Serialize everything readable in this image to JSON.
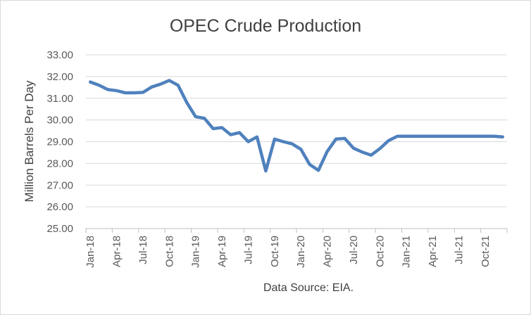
{
  "chart_data": {
    "type": "line",
    "title": "OPEC Crude Production",
    "ylabel": "Million Barrels Per Day",
    "caption": "Data Source: EIA.",
    "ylim": [
      25.0,
      33.0
    ],
    "yticks": [
      "25.00",
      "26.00",
      "27.00",
      "28.00",
      "29.00",
      "30.00",
      "31.00",
      "32.00",
      "33.00"
    ],
    "grid": true,
    "legend": "none",
    "xtick_labels": [
      "Jan-18",
      "Apr-18",
      "Jul-18",
      "Oct-18",
      "Jan-19",
      "Apr-19",
      "Jul-19",
      "Oct-19",
      "Jan-20",
      "Apr-20",
      "Jul-20",
      "Oct-20",
      "Jan-21",
      "Apr-21",
      "Jul-21",
      "Oct-21"
    ],
    "series": [
      {
        "color": "#4f81bd",
        "x": [
          "Jan-18",
          "Feb-18",
          "Mar-18",
          "Apr-18",
          "May-18",
          "Jun-18",
          "Jul-18",
          "Aug-18",
          "Sep-18",
          "Oct-18",
          "Nov-18",
          "Dec-18",
          "Jan-19",
          "Feb-19",
          "Mar-19",
          "Apr-19",
          "May-19",
          "Jun-19",
          "Jul-19",
          "Aug-19",
          "Sep-19",
          "Oct-19",
          "Nov-19",
          "Dec-19",
          "Jan-20",
          "Feb-20",
          "Mar-20",
          "Apr-20",
          "May-20",
          "Jun-20",
          "Jul-20",
          "Aug-20",
          "Sep-20",
          "Oct-20",
          "Nov-20",
          "Dec-20",
          "Jan-21",
          "Feb-21",
          "Mar-21",
          "Apr-21",
          "May-21",
          "Jun-21",
          "Jul-21",
          "Aug-21",
          "Sep-21",
          "Oct-21",
          "Nov-21",
          "Dec-21"
        ],
        "values": [
          31.75,
          31.6,
          31.4,
          31.35,
          31.25,
          31.25,
          31.27,
          31.52,
          31.65,
          31.82,
          31.6,
          30.8,
          30.15,
          30.08,
          29.6,
          29.65,
          29.32,
          29.42,
          29.0,
          29.22,
          27.65,
          29.12,
          29.0,
          28.9,
          28.65,
          27.95,
          27.68,
          28.55,
          29.12,
          29.15,
          28.7,
          28.52,
          28.38,
          28.68,
          29.05,
          29.25,
          29.25,
          29.25,
          29.25,
          29.25,
          29.25,
          29.25,
          29.25,
          29.25,
          29.25,
          29.25,
          29.25,
          29.22
        ]
      }
    ]
  }
}
